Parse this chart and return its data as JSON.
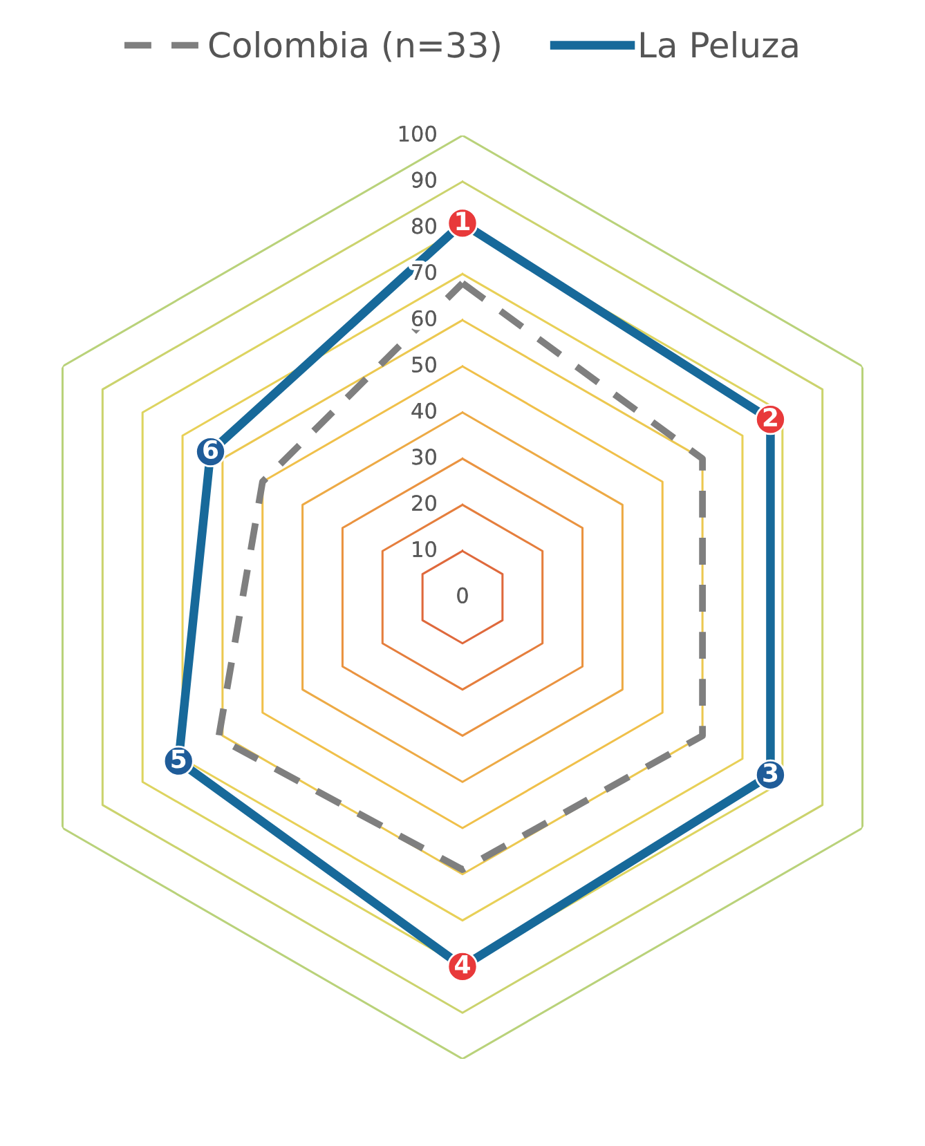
{
  "chart_data": {
    "type": "radar",
    "categories": [
      "1",
      "2",
      "3",
      "4",
      "5",
      "6"
    ],
    "colors": [
      "#e8393a",
      "#e8393a",
      "#1f5c99",
      "#e8393a",
      "#1f5c99",
      "#1f5c99"
    ],
    "series": [
      {
        "name": "Colombia (n=33)",
        "color": "#7f7f7f",
        "line_style": "dashed",
        "values": [
          68,
          60,
          60,
          59,
          61,
          50
        ]
      },
      {
        "name": "La Peluza",
        "color": "#17699a",
        "line_style": "solid",
        "values": [
          81,
          77,
          77,
          80,
          71,
          63
        ]
      }
    ],
    "ylim": [
      0,
      100
    ],
    "yticks": [
      0,
      10,
      20,
      30,
      40,
      50,
      60,
      70,
      80,
      90,
      100
    ],
    "legend": "top",
    "marker": "none"
  }
}
